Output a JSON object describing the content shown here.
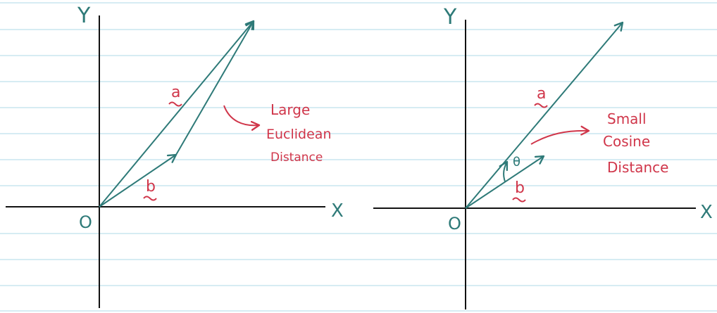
{
  "colors": {
    "ink": "#2e7a78",
    "annotation": "#d0364a",
    "ruled_lines": "#bde0ec",
    "background": "#ffffff"
  },
  "left_diagram": {
    "x_axis_label": "X",
    "y_axis_label": "Y",
    "origin_label": "O",
    "vector_a_label": "a",
    "vector_b_label": "b",
    "annotation_lines": [
      "Large",
      "Euclidean",
      "Distance"
    ]
  },
  "right_diagram": {
    "x_axis_label": "X",
    "y_axis_label": "Y",
    "origin_label": "O",
    "vector_a_label": "a",
    "vector_b_label": "b",
    "angle_label": "θ",
    "annotation_lines": [
      "Small",
      "Cosine",
      "Distance"
    ]
  }
}
